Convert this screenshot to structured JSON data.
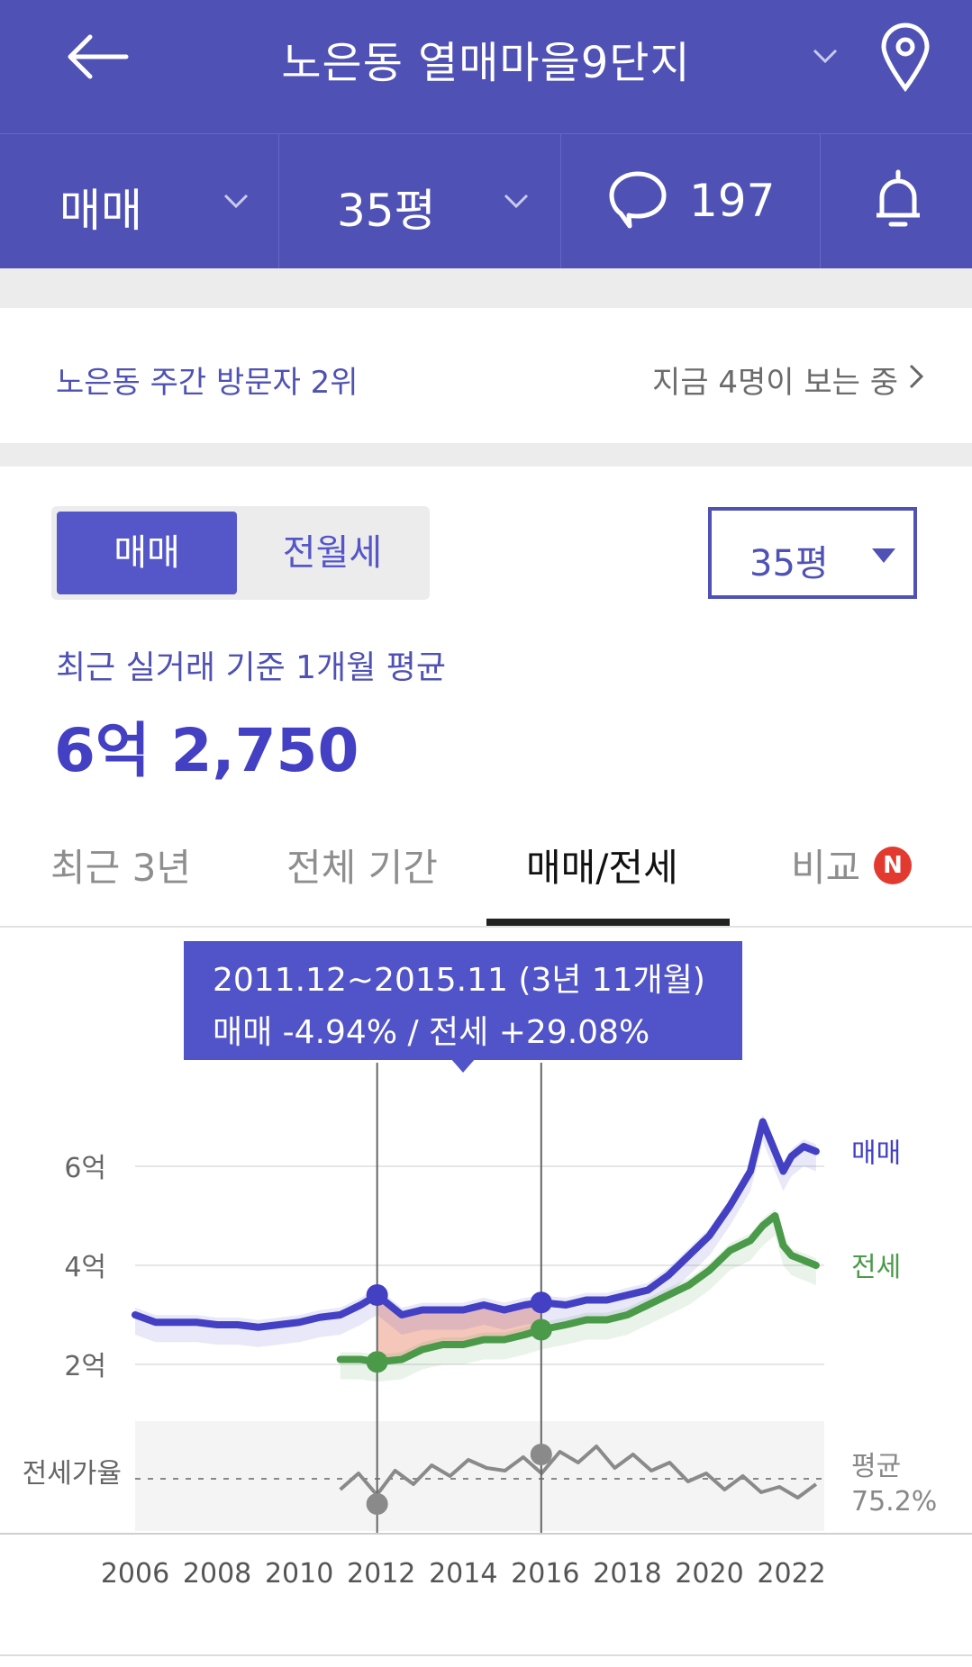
{
  "header": {
    "title": "노은동 열매마을9단지",
    "trade_type": "매매",
    "size": "35평",
    "comment_count": "197",
    "icons": [
      "back-arrow-icon",
      "chevron-down-icon",
      "location-pin-icon",
      "comment-bubble-icon",
      "bell-icon"
    ]
  },
  "info_bar": {
    "rank_text": "노은동 주간 방문자 2위",
    "viewers_text": "지금 4명이 보는 중"
  },
  "segmented": {
    "active": "매매",
    "inactive": "전월세"
  },
  "size_dropdown": {
    "value": "35평"
  },
  "price": {
    "label": "최근 실거래 기준 1개월 평균",
    "value": "6억 2,750"
  },
  "tabs": [
    {
      "label": "최근 3년",
      "active": false
    },
    {
      "label": "전체 기간",
      "active": false
    },
    {
      "label": "매매/전세",
      "active": true
    },
    {
      "label": "비교",
      "active": false,
      "badge": "N"
    }
  ],
  "tooltip": {
    "period": "2011.12~2015.11 (3년 11개월)",
    "change": "매매 -4.94%  /  전세 +29.08%"
  },
  "chart_data": {
    "type": "line",
    "x": [
      2006.0,
      2006.5,
      2007.0,
      2007.5,
      2008.0,
      2008.5,
      2009.0,
      2009.5,
      2010.0,
      2010.5,
      2011.0,
      2011.5,
      2011.9,
      2012.5,
      2013.0,
      2013.5,
      2014.0,
      2014.5,
      2015.0,
      2015.5,
      2015.9,
      2016.5,
      2017.0,
      2017.5,
      2018.0,
      2018.5,
      2019.0,
      2019.5,
      2020.0,
      2020.5,
      2021.0,
      2021.3,
      2021.6,
      2021.8,
      2022.0,
      2022.3,
      2022.6
    ],
    "series": [
      {
        "name": "매매",
        "color": "#4340c4",
        "values": [
          3.0,
          2.85,
          2.85,
          2.85,
          2.8,
          2.8,
          2.75,
          2.8,
          2.85,
          2.95,
          3.0,
          3.2,
          3.4,
          3.0,
          3.1,
          3.1,
          3.1,
          3.2,
          3.1,
          3.2,
          3.25,
          3.2,
          3.3,
          3.3,
          3.4,
          3.5,
          3.8,
          4.2,
          4.6,
          5.2,
          5.9,
          6.9,
          6.3,
          5.9,
          6.2,
          6.4,
          6.3
        ]
      },
      {
        "name": "전세",
        "color": "#4a9a4a",
        "values": [
          null,
          null,
          null,
          null,
          null,
          null,
          null,
          null,
          null,
          null,
          2.1,
          2.1,
          2.05,
          2.1,
          2.3,
          2.4,
          2.4,
          2.5,
          2.5,
          2.6,
          2.7,
          2.8,
          2.9,
          2.9,
          3.0,
          3.2,
          3.4,
          3.6,
          3.9,
          4.3,
          4.5,
          4.8,
          5.0,
          4.4,
          4.2,
          4.1,
          4.0
        ]
      }
    ],
    "ratio_series": {
      "label": "전세가율",
      "avg_label": "평균",
      "avg_value": "75.2%"
    },
    "y_ticks": [
      {
        "label": "2억",
        "value": 2
      },
      {
        "label": "4억",
        "value": 4
      },
      {
        "label": "6억",
        "value": 6
      }
    ],
    "x_ticks": [
      "2006",
      "2008",
      "2010",
      "2012",
      "2014",
      "2016",
      "2018",
      "2020",
      "2022"
    ],
    "markers": [
      2011.9,
      2015.9
    ],
    "xlim": [
      2006,
      2022.8
    ],
    "ylim": [
      0,
      7.5
    ]
  }
}
